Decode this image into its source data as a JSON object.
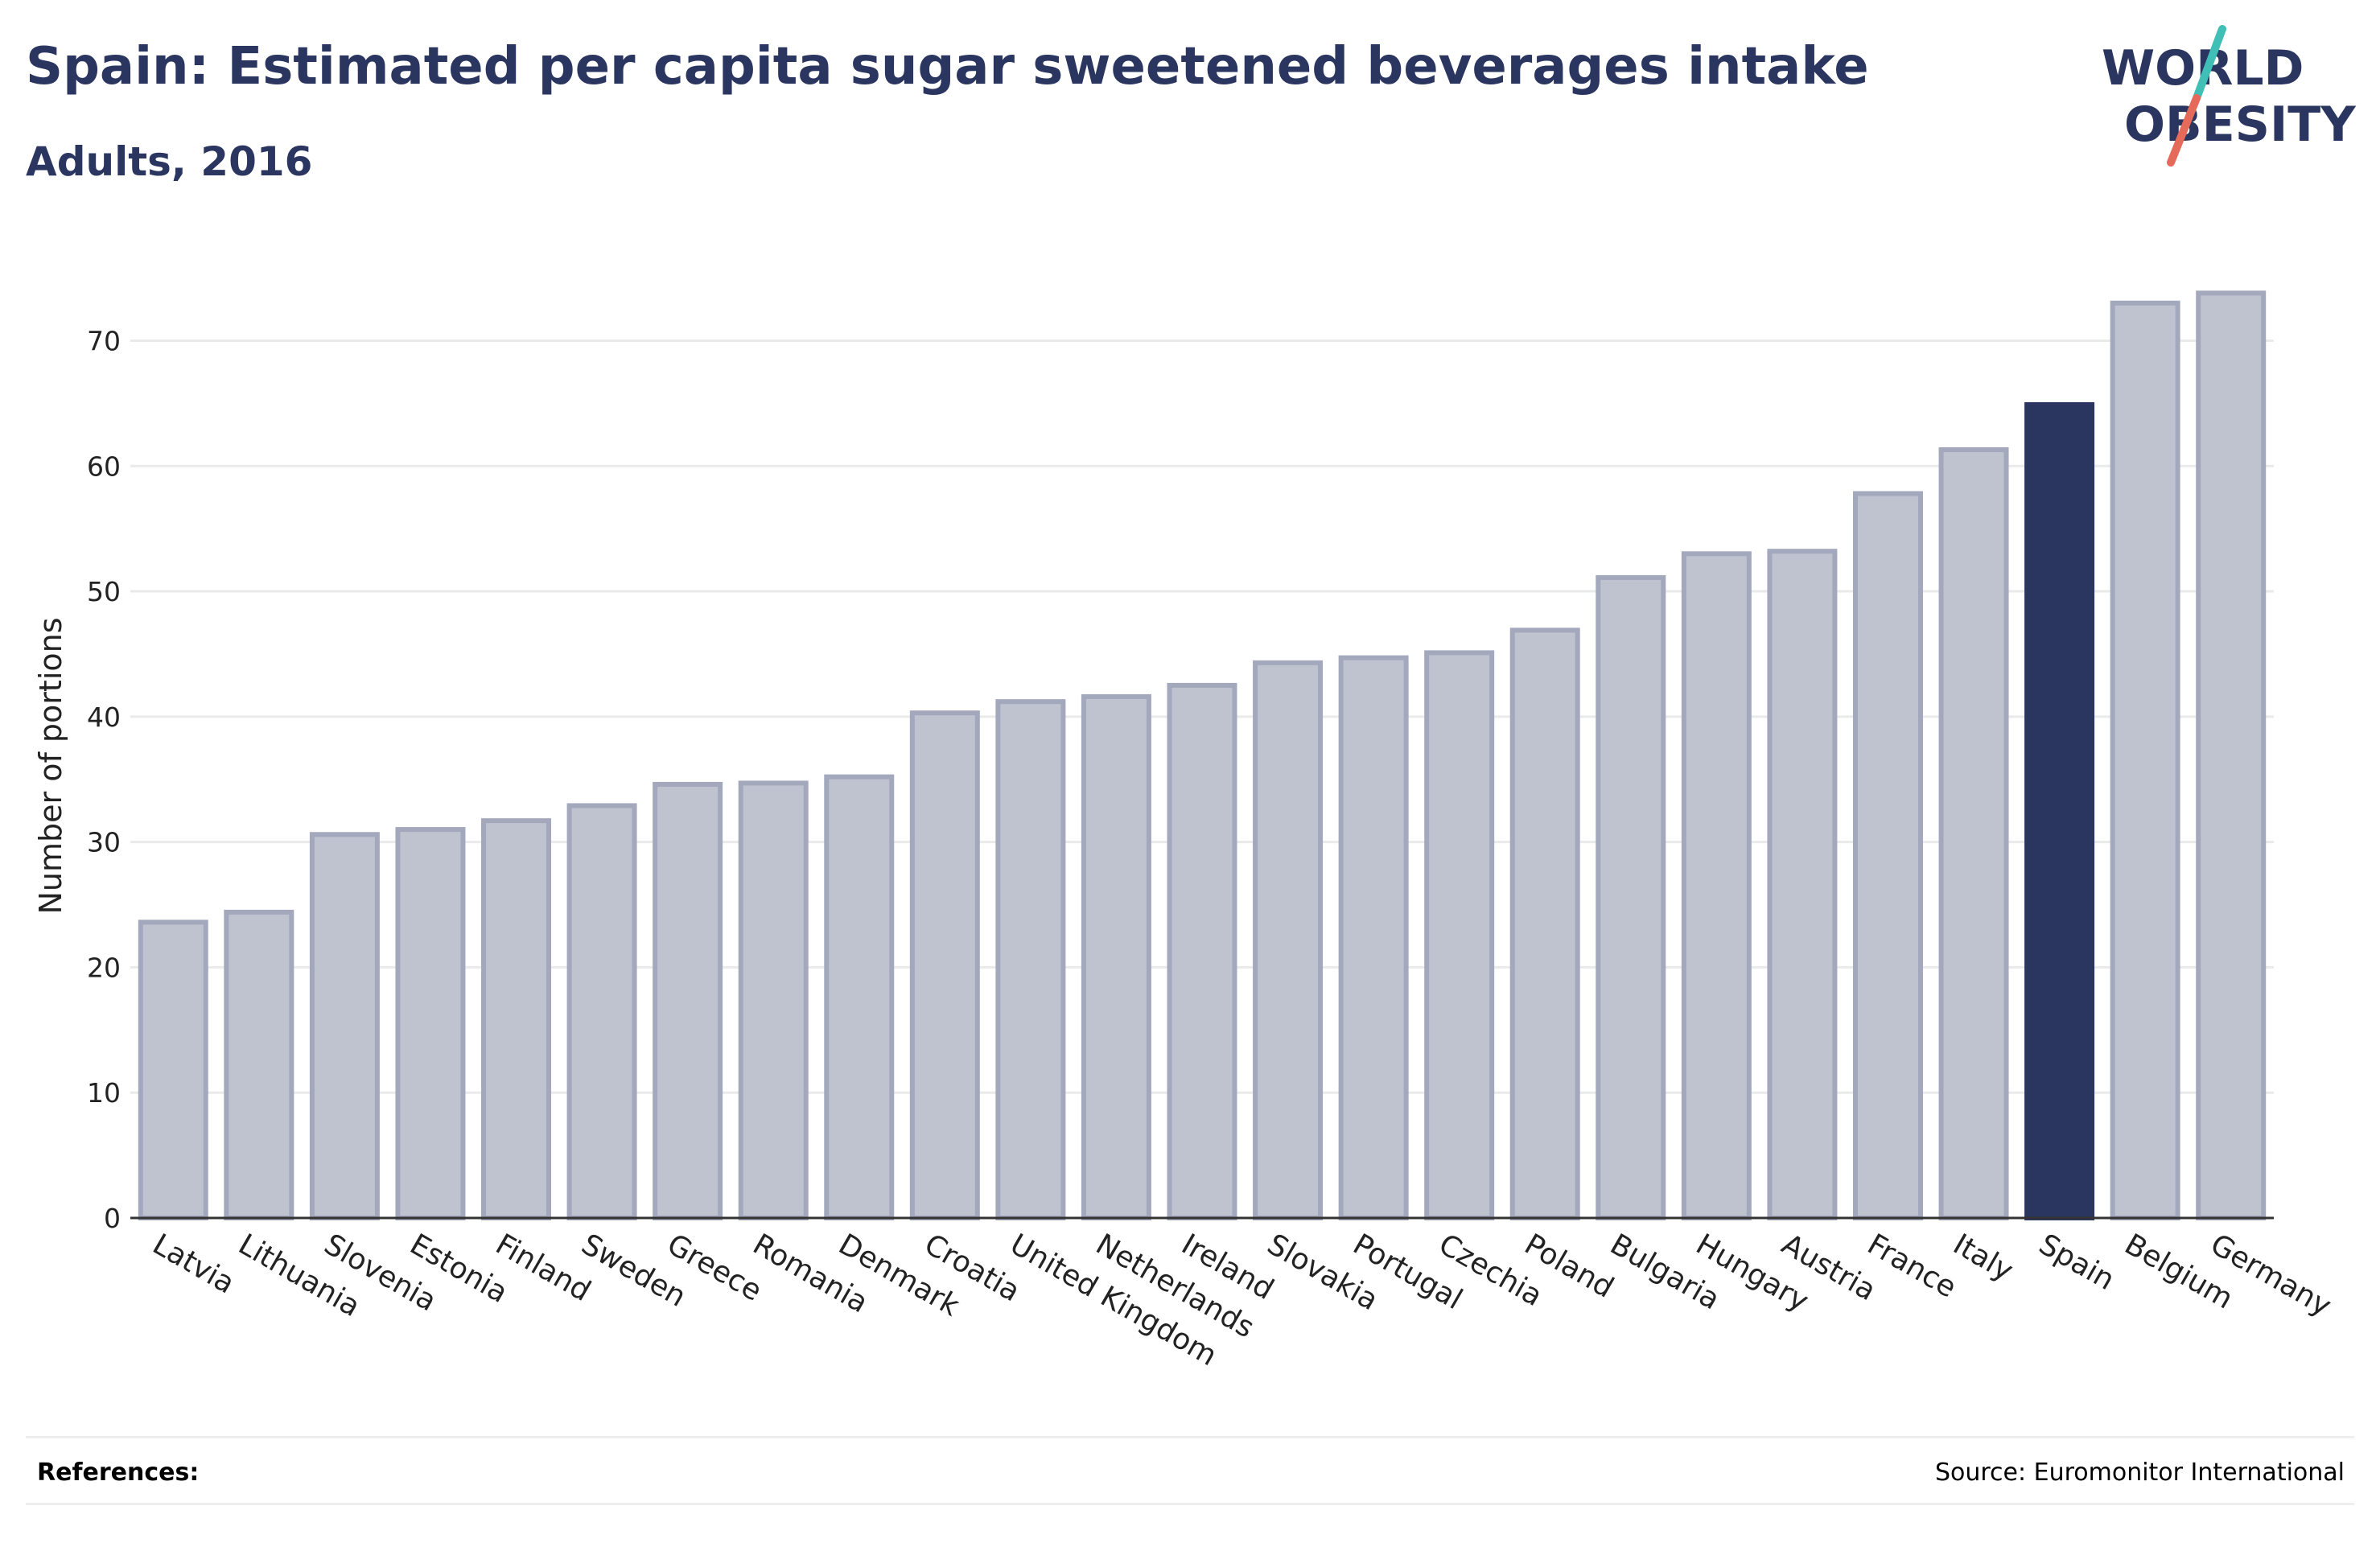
{
  "header": {
    "title": "Spain: Estimated per capita sugar sweetened beverages intake",
    "subtitle": "Adults, 2016"
  },
  "logo": {
    "line1": "WORLD",
    "line2": "OBESITY",
    "text_color": "#2a3560",
    "stroke_top_color": "#3fbfb6",
    "stroke_bottom_color": "#e66a5a"
  },
  "chart_data": {
    "type": "bar",
    "ylabel": "Number of portions",
    "xlabel": "",
    "ylim": [
      0,
      76
    ],
    "yticks": [
      0,
      10,
      20,
      30,
      40,
      50,
      60,
      70
    ],
    "grid": true,
    "highlight": "Spain",
    "colors": {
      "bar_fill": "#bfc2cf",
      "bar_stroke": "#a3a8bd",
      "highlight": "#2a3560",
      "grid": "#eaeaea",
      "axis": "#333333"
    },
    "categories": [
      "Latvia",
      "Lithuania",
      "Slovenia",
      "Estonia",
      "Finland",
      "Sweden",
      "Greece",
      "Romania",
      "Denmark",
      "Croatia",
      "United Kingdom",
      "Netherlands",
      "Ireland",
      "Slovakia",
      "Portugal",
      "Czechia",
      "Poland",
      "Bulgaria",
      "Hungary",
      "Austria",
      "France",
      "Italy",
      "Spain",
      "Belgium",
      "Germany"
    ],
    "values": [
      23.6,
      24.4,
      30.6,
      31.0,
      31.7,
      32.9,
      34.6,
      34.7,
      35.2,
      40.3,
      41.2,
      41.6,
      42.5,
      44.3,
      44.7,
      45.1,
      46.9,
      51.1,
      53.0,
      53.2,
      57.8,
      61.3,
      64.9,
      73.0,
      73.8
    ]
  },
  "footer": {
    "references_label": "References:",
    "source": "Source: Euromonitor International"
  }
}
